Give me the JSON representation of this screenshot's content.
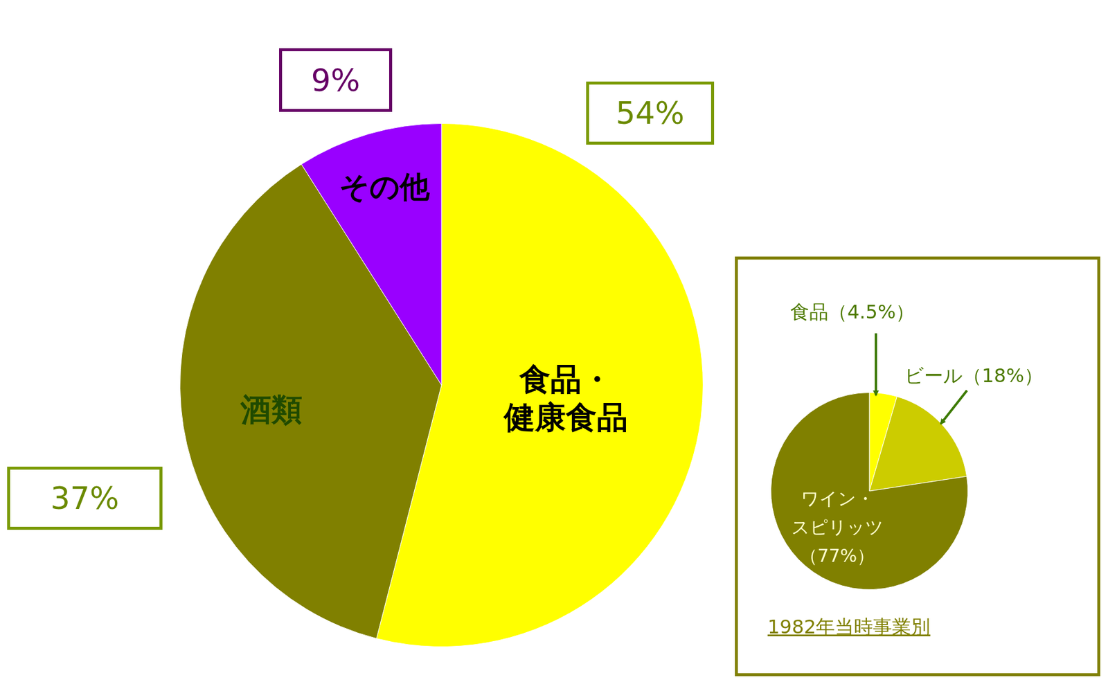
{
  "chart_data": [
    {
      "type": "pie",
      "categories": [
        "食品・健康食品",
        "酒類",
        "その他"
      ],
      "values": [
        54,
        37,
        9
      ],
      "value_labels": [
        "54%",
        "37%",
        "9%"
      ],
      "colors": [
        "#ffff00",
        "#808000",
        "#9900ff"
      ],
      "data_labels": true
    },
    {
      "type": "pie",
      "title": "1982年当時事業別",
      "categories": [
        "食品",
        "ビール",
        "ワイン・スピリッツ"
      ],
      "values": [
        4.5,
        18,
        77
      ],
      "value_labels": [
        "（4.5%）",
        "（18%）",
        "（77%）"
      ],
      "colors": [
        "#ffff00",
        "#cccc00",
        "#808000"
      ],
      "data_labels": true
    }
  ]
}
